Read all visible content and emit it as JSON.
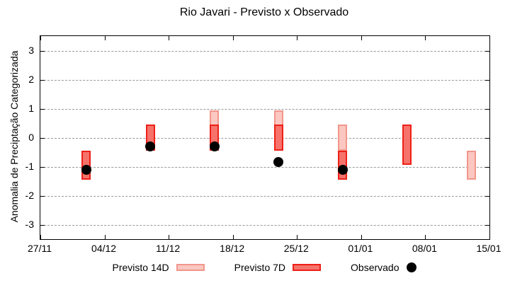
{
  "title": "Rio Javari - Previsto x Observado",
  "ylabel": "Anomalia de Preciptação Categorizada",
  "colors": {
    "background": "#ffffff",
    "frame": "#000000",
    "grid": "#9a9a9a",
    "previsto_14d_fill": "#fbc7c0",
    "previsto_14d_border": "#f2968c",
    "previsto_7d_fill": "#f6736b",
    "previsto_7d_border": "#ee2018",
    "observado": "#000000"
  },
  "legend": {
    "items": [
      {
        "label": "Previsto 14D",
        "marker": "light-pink-box"
      },
      {
        "label": "Previsto 7D",
        "marker": "red-box"
      },
      {
        "label": "Observado",
        "marker": "black-dot"
      }
    ]
  },
  "chart_data": {
    "type": "range-bar+scatter",
    "title": "Rio Javari - Previsto x Observado",
    "xlabel": "",
    "ylabel": "Anomalia de Preciptação Categorizada",
    "x_tick_labels": [
      "27/11",
      "04/12",
      "11/12",
      "18/12",
      "25/12",
      "01/01",
      "08/01",
      "15/01"
    ],
    "y_ticks": [
      3,
      2,
      1,
      0,
      -1,
      -2,
      -3
    ],
    "ylim": [
      -3.5,
      3.5
    ],
    "xlim_days": 49,
    "grid": "horizontal-dashed",
    "legend_position": "bottom-center",
    "series": [
      {
        "name": "Previsto 14D",
        "type": "range-bar",
        "fill": "#fbc7c0",
        "border": "#f2968c",
        "bars": [
          {
            "date": "16/12",
            "low": -0.45,
            "high": 0.95
          },
          {
            "date": "23/12",
            "low": -0.45,
            "high": 0.95
          },
          {
            "date": "30/12",
            "low": -0.45,
            "high": 0.45
          },
          {
            "date": "13/01",
            "low": -1.45,
            "high": -0.45
          }
        ]
      },
      {
        "name": "Previsto 7D",
        "type": "range-bar",
        "fill": "#f6736b",
        "border": "#ee2018",
        "bars": [
          {
            "date": "02/12",
            "low": -1.45,
            "high": -0.45
          },
          {
            "date": "09/12",
            "low": -0.45,
            "high": 0.45
          },
          {
            "date": "16/12",
            "low": -0.45,
            "high": 0.45
          },
          {
            "date": "23/12",
            "low": -0.45,
            "high": 0.45
          },
          {
            "date": "30/12",
            "low": -1.45,
            "high": -0.45
          },
          {
            "date": "06/01",
            "low": -0.95,
            "high": 0.45
          }
        ]
      },
      {
        "name": "Observado",
        "type": "scatter",
        "color": "#000000",
        "points": [
          {
            "date": "02/12",
            "value": -1.1
          },
          {
            "date": "09/12",
            "value": -0.3
          },
          {
            "date": "16/12",
            "value": -0.3
          },
          {
            "date": "23/12",
            "value": -0.85
          },
          {
            "date": "30/12",
            "value": -1.1
          }
        ]
      }
    ]
  }
}
